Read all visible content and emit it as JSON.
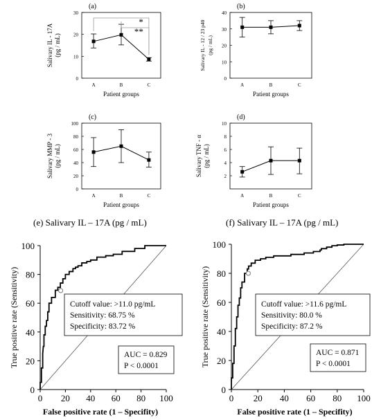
{
  "chart_data": [
    {
      "id": "a",
      "panel_label": "(a)",
      "type": "line",
      "categories": [
        "A",
        "B",
        "C"
      ],
      "values": [
        16.8,
        19.8,
        8.6
      ],
      "error_low": [
        13.8,
        15.2,
        7.8
      ],
      "error_high": [
        20.2,
        24.6,
        9.4
      ],
      "ylabel": "Salivary IL - 17A (pg / mL)",
      "xlabel": "Patient groups",
      "ylim": [
        0,
        30
      ],
      "yticks": [
        0,
        10,
        20,
        30
      ],
      "significance": [
        {
          "from": "A",
          "to": "C",
          "label": "*"
        },
        {
          "from": "B",
          "to": "C",
          "label": "**"
        }
      ]
    },
    {
      "id": "b",
      "panel_label": "(b)",
      "type": "line",
      "categories": [
        "A",
        "B",
        "C"
      ],
      "values": [
        31,
        31,
        32
      ],
      "error_low": [
        25,
        27,
        29
      ],
      "error_high": [
        37,
        35,
        35
      ],
      "ylabel": "Salivary IL - 12 / 23 p40 (pg / mL)",
      "xlabel": "Patient groups",
      "ylim": [
        0,
        40
      ],
      "yticks": [
        0,
        10,
        20,
        30,
        40
      ]
    },
    {
      "id": "c",
      "panel_label": "(c)",
      "type": "line",
      "categories": [
        "A",
        "B",
        "C"
      ],
      "values": [
        56,
        65,
        44
      ],
      "error_low": [
        34,
        40,
        33
      ],
      "error_high": [
        78,
        90,
        56
      ],
      "ylabel": "Salivary MMP - 3 (pg / mL)",
      "xlabel": "Patient groups",
      "ylim": [
        0,
        100
      ],
      "yticks": [
        0,
        20,
        40,
        60,
        80,
        100
      ]
    },
    {
      "id": "d",
      "panel_label": "(d)",
      "type": "line",
      "categories": [
        "A",
        "B",
        "C"
      ],
      "values": [
        2.6,
        4.3,
        4.3
      ],
      "error_low": [
        1.8,
        2.2,
        2.3
      ],
      "error_high": [
        3.4,
        6.4,
        6.2
      ],
      "ylabel": "Salivary TNF - α (pg / mL)",
      "xlabel": "Patient groups",
      "ylim": [
        0,
        10
      ],
      "yticks": [
        2,
        4,
        6,
        8,
        10
      ]
    },
    {
      "id": "e",
      "panel_label": "(e) Salivary IL – 17A (pg / mL)",
      "type": "line",
      "subtype": "roc",
      "x": [
        0,
        0,
        1,
        1,
        2,
        2,
        2.5,
        3,
        3,
        4,
        4,
        5,
        5,
        6,
        6,
        7,
        7,
        9,
        9,
        12,
        12,
        14,
        14,
        16,
        16,
        18,
        18,
        20,
        20,
        23,
        23,
        26,
        26,
        28,
        28,
        30,
        30,
        33,
        33,
        37,
        37,
        40,
        40,
        45,
        45,
        52,
        52,
        58,
        58,
        65,
        65,
        75,
        75,
        83,
        83,
        100
      ],
      "y": [
        0,
        5,
        5,
        15,
        15,
        25,
        30,
        30,
        38,
        38,
        44,
        44,
        48,
        48,
        54,
        54,
        60,
        60,
        64,
        64,
        69,
        69,
        71,
        71,
        74,
        74,
        77,
        77,
        80,
        80,
        82,
        82,
        84,
        84,
        85,
        85,
        86,
        86,
        88,
        88,
        89,
        89,
        90,
        90,
        92,
        92,
        93,
        93,
        94,
        94,
        96,
        96,
        98,
        98,
        100,
        100
      ],
      "cutoff_point": {
        "x": 16.28,
        "y": 68.75
      },
      "xlabel": "False positive rate (1 – Specifity)",
      "ylabel": "True positive rate (Sensitivity)",
      "xlim": [
        0,
        100
      ],
      "ylim": [
        0,
        100
      ],
      "ticks": [
        0,
        20,
        40,
        60,
        80,
        100
      ],
      "cutoff_text": [
        "Cutoff value: >11.0 pg/mL",
        "Sensitivity: 68.75 %",
        "Specificity: 83.72 %"
      ],
      "auc_text": [
        "AUC = 0.829",
        "P < 0.0001"
      ]
    },
    {
      "id": "f",
      "panel_label": "(f) Salivary IL – 17A (pg / mL)",
      "type": "line",
      "subtype": "roc",
      "x": [
        0,
        0,
        1,
        1,
        2,
        2,
        3,
        3,
        4,
        4,
        5,
        5,
        6,
        6,
        7,
        7,
        8,
        8,
        10,
        10,
        12,
        12,
        13,
        13,
        15,
        15,
        18,
        18,
        22,
        22,
        26,
        26,
        32,
        32,
        45,
        45,
        55,
        55,
        62,
        62,
        67,
        67,
        68,
        68,
        72,
        72,
        76,
        76,
        80,
        80,
        85,
        85,
        100
      ],
      "y": [
        0,
        8,
        8,
        18,
        18,
        30,
        30,
        42,
        42,
        50,
        50,
        58,
        58,
        63,
        63,
        70,
        70,
        74,
        74,
        80,
        80,
        83,
        83,
        85,
        85,
        87,
        87,
        89,
        89,
        90,
        90,
        91,
        91,
        92,
        92,
        93,
        93,
        94,
        94,
        95,
        95,
        96,
        96,
        97,
        97,
        98,
        98,
        99,
        99,
        99.5,
        99.5,
        100,
        100
      ],
      "cutoff_point": {
        "x": 12.8,
        "y": 80.0
      },
      "xlabel": "False positive rate (1 – Specifity)",
      "ylabel": "True positive rate (Sensitivity)",
      "xlim": [
        0,
        100
      ],
      "ylim": [
        0,
        100
      ],
      "ticks": [
        0,
        20,
        40,
        60,
        80,
        100
      ],
      "cutoff_text": [
        "Cutoff value: >11.6 pg/mL",
        "Sensitivity: 80.0 %",
        "Specificity: 87.2 %"
      ],
      "auc_text": [
        "AUC = 0.871",
        "P < 0.0001"
      ]
    }
  ]
}
